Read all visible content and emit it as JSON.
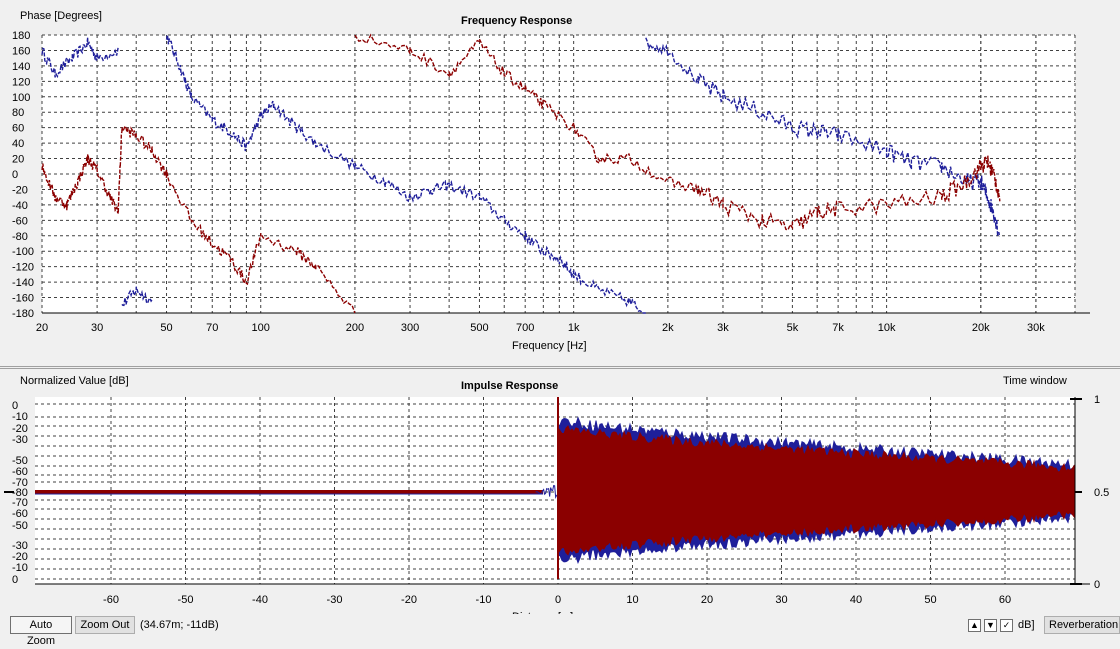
{
  "frequency_panel": {
    "title": "Frequency Response",
    "y_axis_label": "Phase [Degrees]",
    "x_axis_label": "Frequency [Hz]",
    "y_ticks": [
      "180",
      "160",
      "140",
      "120",
      "100",
      "80",
      "60",
      "40",
      "20",
      "0",
      "-20",
      "-40",
      "-60",
      "-80",
      "-100",
      "-120",
      "-140",
      "-160",
      "-180"
    ],
    "x_ticks": [
      "20",
      "30",
      "50",
      "70",
      "100",
      "200",
      "300",
      "500",
      "700",
      "1k",
      "2k",
      "3k",
      "5k",
      "7k",
      "10k",
      "20k",
      "30k"
    ],
    "grid": true
  },
  "impulse_panel": {
    "title": "Impulse Response",
    "y_axis_label": "Normalized Value [dB]",
    "time_window_label": "Time window",
    "y_ticks": [
      "0",
      "-10",
      "-20",
      "-30",
      "-50",
      "-60",
      "-70",
      "-80",
      "-70",
      "-60",
      "-50",
      "-30",
      "-20",
      "-10",
      "0"
    ],
    "x_ticks": [
      "-60",
      "-50",
      "-40",
      "-30",
      "-20",
      "-10",
      "0",
      "10",
      "20",
      "30",
      "40",
      "50",
      "60"
    ],
    "x_axis_label": "Distance [m]",
    "right_ticks": [
      "1",
      "0.5",
      "0"
    ],
    "grid": true
  },
  "chart_data": [
    {
      "type": "line",
      "title": "Frequency Response",
      "xlabel": "Frequency [Hz]",
      "ylabel": "Phase [Degrees]",
      "x_scale": "log",
      "xlim": [
        20,
        40000
      ],
      "ylim": [
        -180,
        180
      ],
      "series": [
        {
          "color": "#1f1f9a",
          "points": [
            [
              20,
              160
            ],
            [
              22,
              130
            ],
            [
              25,
              150
            ],
            [
              28,
              170
            ],
            [
              30,
              150
            ],
            [
              35,
              160
            ],
            [
              36,
              -170
            ],
            [
              40,
              -150
            ],
            [
              45,
              -165
            ],
            [
              50,
              180
            ],
            [
              55,
              140
            ],
            [
              60,
              100
            ],
            [
              70,
              70
            ],
            [
              80,
              55
            ],
            [
              90,
              35
            ],
            [
              100,
              75
            ],
            [
              110,
              90
            ],
            [
              130,
              60
            ],
            [
              150,
              40
            ],
            [
              200,
              10
            ],
            [
              250,
              -10
            ],
            [
              300,
              -30
            ],
            [
              350,
              -20
            ],
            [
              400,
              -15
            ],
            [
              500,
              -30
            ],
            [
              600,
              -60
            ],
            [
              700,
              -80
            ],
            [
              800,
              -100
            ],
            [
              900,
              -110
            ],
            [
              1000,
              -130
            ],
            [
              1200,
              -150
            ],
            [
              1500,
              -165
            ],
            [
              1700,
              -180
            ],
            [
              1700,
              170
            ],
            [
              2000,
              160
            ],
            [
              2500,
              120
            ],
            [
              3000,
              100
            ],
            [
              4000,
              80
            ],
            [
              5000,
              60
            ],
            [
              6000,
              55
            ],
            [
              7000,
              50
            ],
            [
              10000,
              30
            ],
            [
              12000,
              15
            ],
            [
              15000,
              10
            ],
            [
              18000,
              -10
            ],
            [
              20000,
              -10
            ],
            [
              21000,
              -30
            ],
            [
              22000,
              -50
            ],
            [
              23000,
              -80
            ]
          ]
        },
        {
          "color": "#8b0000",
          "points": [
            [
              20,
              10
            ],
            [
              22,
              -30
            ],
            [
              24,
              -40
            ],
            [
              26,
              -10
            ],
            [
              28,
              20
            ],
            [
              30,
              5
            ],
            [
              33,
              -30
            ],
            [
              35,
              -50
            ],
            [
              36,
              60
            ],
            [
              40,
              50
            ],
            [
              45,
              30
            ],
            [
              50,
              0
            ],
            [
              60,
              -60
            ],
            [
              70,
              -90
            ],
            [
              80,
              -110
            ],
            [
              90,
              -140
            ],
            [
              100,
              -80
            ],
            [
              130,
              -100
            ],
            [
              150,
              -120
            ],
            [
              200,
              -180
            ],
            [
              200,
              180
            ],
            [
              300,
              160
            ],
            [
              400,
              130
            ],
            [
              500,
              170
            ],
            [
              600,
              130
            ],
            [
              700,
              110
            ],
            [
              800,
              90
            ],
            [
              1000,
              60
            ],
            [
              1200,
              20
            ],
            [
              1500,
              20
            ],
            [
              2000,
              -10
            ],
            [
              2500,
              -20
            ],
            [
              3000,
              -40
            ],
            [
              4000,
              -60
            ],
            [
              5000,
              -70
            ],
            [
              6000,
              -50
            ],
            [
              7000,
              -45
            ],
            [
              10000,
              -40
            ],
            [
              15000,
              -30
            ],
            [
              18000,
              -10
            ],
            [
              20000,
              10
            ],
            [
              21000,
              15
            ],
            [
              22000,
              0
            ],
            [
              23000,
              -30
            ]
          ]
        }
      ]
    },
    {
      "type": "line",
      "title": "Impulse Response",
      "xlabel": "Distance [m]",
      "ylabel": "Normalized Value [dB]",
      "xlim": [
        -70,
        70
      ],
      "series": [
        {
          "color": "#1f1f9a"
        },
        {
          "color": "#8b0000"
        }
      ],
      "y2_ticks": [
        0,
        0.5,
        1
      ]
    }
  ],
  "statusbar": {
    "auto_zoom": "Auto Zoom",
    "zoom_out": "Zoom Out",
    "cursor_readout": "(34.67m; -11dB)",
    "up_arrow": "▲",
    "down_arrow": "▼",
    "check": "✓",
    "db_label": "dB]",
    "reverberation": "Reverberation"
  },
  "colors": {
    "blue": "#1f1f9a",
    "red": "#8b0000",
    "grid": "#404040"
  }
}
